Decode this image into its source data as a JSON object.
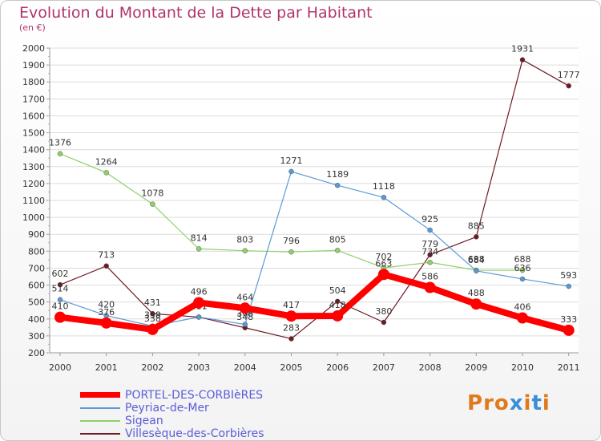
{
  "chart_data": {
    "type": "line",
    "title": "Evolution du Montant de la Dette par Habitant",
    "subtitle": "(en €)",
    "x": [
      "2000",
      "2001",
      "2002",
      "2003",
      "2004",
      "2005",
      "2006",
      "2007",
      "2008",
      "2009",
      "2010",
      "2011"
    ],
    "ylim": [
      200,
      2000
    ],
    "yticks": [
      200,
      300,
      400,
      500,
      600,
      700,
      800,
      900,
      1000,
      1100,
      1200,
      1300,
      1400,
      1500,
      1600,
      1700,
      1800,
      1900,
      2000
    ],
    "grid": true,
    "legend_position": "bottom-left",
    "series": [
      {
        "name": "Villesèque-des-Corbières",
        "color": "#6e1a24",
        "width": 1.2,
        "marker": 3,
        "values": [
          602,
          713,
          431,
          411,
          348,
          283,
          504,
          380,
          779,
          885,
          1931,
          1777
        ],
        "labels": [
          "602",
          "713",
          "431",
          "411",
          "348",
          "283",
          "504",
          "380",
          "779",
          "885",
          "1931",
          "1777"
        ]
      },
      {
        "name": "Sigean",
        "color": "#90d06a",
        "width": 1.2,
        "marker": 3,
        "values": [
          1376,
          1264,
          1078,
          814,
          803,
          796,
          805,
          702,
          734,
          688,
          688,
          null
        ],
        "labels": [
          "1376",
          "1264",
          "1078",
          "814",
          "803",
          "796",
          "805",
          "702",
          "734",
          "688",
          "688",
          ""
        ]
      },
      {
        "name": "Peyriac-de-Mer",
        "color": "#5b9ad5",
        "width": 1.2,
        "marker": 3,
        "values": [
          514,
          420,
          358,
          411,
          368,
          1271,
          1189,
          1118,
          925,
          684,
          636,
          593
        ],
        "labels": [
          "514",
          "420",
          "358",
          "411",
          "368",
          "1271",
          "1189",
          "1118",
          "925",
          "684",
          "636",
          "593"
        ]
      },
      {
        "name": "PORTEL-DES-CORBIèRES",
        "color": "#ff0000",
        "width": 8,
        "marker": 7,
        "values": [
          410,
          376,
          338,
          496,
          464,
          417,
          418,
          663,
          586,
          488,
          406,
          333
        ],
        "labels": [
          "410",
          "376",
          "338",
          "496",
          "464",
          "417",
          "418",
          "663",
          "586",
          "488",
          "406",
          "333"
        ]
      }
    ]
  },
  "legend": [
    {
      "label": "PORTEL-DES-CORBIèRES",
      "color": "#ff0000",
      "thickness": 7
    },
    {
      "label": "Peyriac-de-Mer",
      "color": "#5b9ad5",
      "thickness": 2
    },
    {
      "label": "Sigean",
      "color": "#90d06a",
      "thickness": 2
    },
    {
      "label": "Villesèque-des-Corbières",
      "color": "#6e1a24",
      "thickness": 2
    }
  ],
  "logo": {
    "text": "Proxiti",
    "colors": [
      "#e07a1e",
      "#e07a1e",
      "#e07a1e",
      "#3b8fd6",
      "#e07a1e",
      "#3b8fd6",
      "#e07a1e"
    ]
  }
}
